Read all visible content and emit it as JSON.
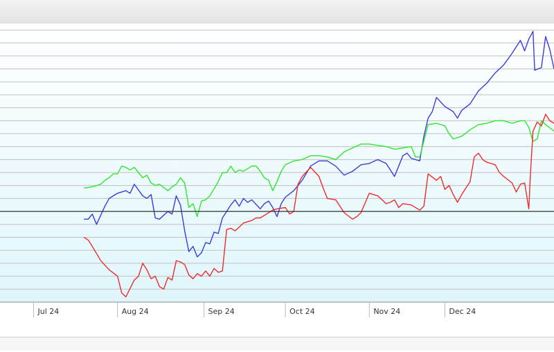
{
  "chart_data": {
    "type": "line",
    "title": "",
    "xlabel": "",
    "ylabel": "",
    "x_tick_labels": [
      "Jul 24",
      "Aug 24",
      "Sep 24",
      "Oct 24",
      "Nov 24",
      "Dec 24"
    ],
    "y_ticks": [
      -7,
      -6,
      -5,
      -4,
      -3,
      -2,
      -1,
      0,
      1,
      2,
      3,
      4,
      5,
      6,
      7,
      8,
      9,
      10,
      11,
      12,
      13,
      14
    ],
    "ylim": [
      -7,
      14.5
    ],
    "baseline": 0,
    "grid": "horizontal",
    "legend": "none",
    "colors": {
      "background_top": "#ffffff",
      "background_bottom": "#dff6fb",
      "gridline": "#c0c0c0",
      "baseline": "#333333",
      "blue": "#3b3bd9",
      "green": "#2ee82e",
      "red": "#ee2b2b"
    },
    "series": [
      {
        "color": "blue",
        "values": [
          [
            0,
            -0.6
          ],
          [
            0.5,
            -0.6
          ],
          [
            1,
            -0.2
          ],
          [
            1.5,
            -1.0
          ],
          [
            2.5,
            0.4
          ],
          [
            3,
            1.0
          ],
          [
            4,
            1.4
          ],
          [
            5,
            1.6
          ],
          [
            5.5,
            1.4
          ],
          [
            6,
            2.1
          ],
          [
            7,
            1.2
          ],
          [
            7.5,
            1.0
          ],
          [
            8,
            1.3
          ],
          [
            8.5,
            -0.5
          ],
          [
            9,
            -0.6
          ],
          [
            10,
            0.0
          ],
          [
            10.5,
            -0.2
          ],
          [
            11,
            1.2
          ],
          [
            11.5,
            0.5
          ],
          [
            12,
            -1.5
          ],
          [
            12.5,
            -3.1
          ],
          [
            13,
            -2.7
          ],
          [
            13.5,
            -3.5
          ],
          [
            14,
            -3.2
          ],
          [
            14.5,
            -2.4
          ],
          [
            15,
            -2.5
          ],
          [
            15.5,
            -1.6
          ],
          [
            16,
            -1.7
          ],
          [
            16.5,
            -0.5
          ],
          [
            17,
            0.0
          ],
          [
            17.5,
            0.5
          ],
          [
            18,
            0.9
          ],
          [
            18.5,
            0.4
          ],
          [
            19,
            1.0
          ],
          [
            19.5,
            0.7
          ],
          [
            20,
            0.9
          ],
          [
            21,
            0.2
          ],
          [
            21.5,
            0.6
          ],
          [
            22,
            0.8
          ],
          [
            22.5,
            0.3
          ],
          [
            23,
            -0.4
          ],
          [
            23.5,
            0.6
          ],
          [
            24,
            1.1
          ],
          [
            25,
            1.6
          ],
          [
            26,
            2.4
          ],
          [
            27,
            3.5
          ],
          [
            28,
            3.9
          ],
          [
            29,
            3.9
          ],
          [
            30,
            3.5
          ],
          [
            31,
            2.8
          ],
          [
            32,
            3.1
          ],
          [
            33,
            3.6
          ],
          [
            34,
            3.7
          ],
          [
            35,
            4.0
          ],
          [
            36,
            3.7
          ],
          [
            37,
            2.7
          ],
          [
            38,
            4.3
          ],
          [
            38.5,
            4.5
          ],
          [
            39,
            4.1
          ],
          [
            40,
            3.9
          ],
          [
            40.5,
            5.8
          ],
          [
            41,
            7.2
          ],
          [
            41.5,
            7.7
          ],
          [
            42,
            8.8
          ],
          [
            43,
            8.1
          ],
          [
            44,
            7.7
          ],
          [
            44.5,
            7.2
          ],
          [
            45,
            7.8
          ],
          [
            46,
            8.3
          ],
          [
            47,
            9.3
          ],
          [
            48,
            9.9
          ],
          [
            49,
            10.7
          ],
          [
            50,
            11.3
          ],
          [
            51,
            12.2
          ],
          [
            52,
            13.2
          ],
          [
            52.5,
            12.4
          ],
          [
            53,
            13.3
          ],
          [
            53.5,
            13.9
          ],
          [
            53.7,
            10.9
          ],
          [
            54.5,
            11.1
          ],
          [
            55,
            13.5
          ],
          [
            55.5,
            12.5
          ],
          [
            56,
            11.0
          ]
        ]
      },
      {
        "color": "green",
        "values": [
          [
            0,
            1.8
          ],
          [
            1,
            1.9
          ],
          [
            2,
            2.1
          ],
          [
            2.5,
            2.4
          ],
          [
            3,
            2.6
          ],
          [
            3.5,
            2.9
          ],
          [
            4,
            2.9
          ],
          [
            4.5,
            3.5
          ],
          [
            5,
            3.4
          ],
          [
            5.5,
            3.2
          ],
          [
            6,
            3.4
          ],
          [
            6.5,
            3.0
          ],
          [
            7,
            2.6
          ],
          [
            7.5,
            2.8
          ],
          [
            8,
            2.2
          ],
          [
            8.5,
            2.0
          ],
          [
            9,
            2.1
          ],
          [
            10,
            1.6
          ],
          [
            10.5,
            1.9
          ],
          [
            11,
            2.1
          ],
          [
            11.5,
            2.6
          ],
          [
            12,
            2.2
          ],
          [
            12.5,
            0.3
          ],
          [
            13,
            0.6
          ],
          [
            13.5,
            -0.4
          ],
          [
            14,
            0.8
          ],
          [
            14.5,
            0.9
          ],
          [
            15,
            1.2
          ],
          [
            16,
            2.3
          ],
          [
            16.5,
            3.0
          ],
          [
            17,
            3.0
          ],
          [
            17.5,
            3.5
          ],
          [
            18,
            3.0
          ],
          [
            18.5,
            3.2
          ],
          [
            19,
            3.1
          ],
          [
            19.5,
            3.3
          ],
          [
            20,
            3.5
          ],
          [
            20.5,
            3.5
          ],
          [
            21,
            3.1
          ],
          [
            21.5,
            2.6
          ],
          [
            22,
            2.4
          ],
          [
            22.5,
            1.6
          ],
          [
            23,
            2.3
          ],
          [
            23.5,
            3.1
          ],
          [
            24,
            3.6
          ],
          [
            25,
            3.9
          ],
          [
            26,
            4.0
          ],
          [
            27,
            4.3
          ],
          [
            28,
            4.3
          ],
          [
            29,
            4.2
          ],
          [
            30,
            4.0
          ],
          [
            31,
            4.6
          ],
          [
            32,
            4.9
          ],
          [
            33,
            5.2
          ],
          [
            34,
            5.2
          ],
          [
            35,
            5.1
          ],
          [
            36,
            5.0
          ],
          [
            37,
            4.8
          ],
          [
            38,
            4.9
          ],
          [
            39,
            5.0
          ],
          [
            39.5,
            4.2
          ],
          [
            40,
            4.2
          ],
          [
            41,
            6.7
          ],
          [
            42,
            6.8
          ],
          [
            43,
            6.6
          ],
          [
            43.5,
            6.0
          ],
          [
            44,
            5.6
          ],
          [
            45,
            5.8
          ],
          [
            46,
            6.3
          ],
          [
            47,
            6.7
          ],
          [
            48,
            6.8
          ],
          [
            49,
            7.0
          ],
          [
            50,
            7.0
          ],
          [
            51,
            6.8
          ],
          [
            52,
            7.0
          ],
          [
            52.5,
            7.0
          ],
          [
            53,
            6.5
          ],
          [
            53.5,
            5.4
          ],
          [
            54,
            5.6
          ],
          [
            54.5,
            7.0
          ],
          [
            55,
            6.7
          ],
          [
            56,
            6.2
          ]
        ]
      },
      {
        "color": "red",
        "values": [
          [
            0,
            -2.0
          ],
          [
            0.5,
            -2.2
          ],
          [
            1,
            -2.7
          ],
          [
            2,
            -3.8
          ],
          [
            3,
            -4.5
          ],
          [
            4,
            -5.0
          ],
          [
            4.5,
            -6.3
          ],
          [
            5,
            -6.6
          ],
          [
            6,
            -5.3
          ],
          [
            6.5,
            -5.0
          ],
          [
            7,
            -4.0
          ],
          [
            7.5,
            -4.5
          ],
          [
            8,
            -5.2
          ],
          [
            8.5,
            -5.0
          ],
          [
            9,
            -5.8
          ],
          [
            9.5,
            -6.0
          ],
          [
            10,
            -5.1
          ],
          [
            10.5,
            -5.3
          ],
          [
            11,
            -3.8
          ],
          [
            11.5,
            -3.9
          ],
          [
            12,
            -4.1
          ],
          [
            12.5,
            -4.9
          ],
          [
            13,
            -5.2
          ],
          [
            13.5,
            -4.8
          ],
          [
            14,
            -5.0
          ],
          [
            14.5,
            -4.6
          ],
          [
            15,
            -5.0
          ],
          [
            15.5,
            -4.4
          ],
          [
            16,
            -4.7
          ],
          [
            16.5,
            -4.6
          ],
          [
            17,
            -1.4
          ],
          [
            17.5,
            -1.3
          ],
          [
            18,
            -1.5
          ],
          [
            18.5,
            -1.2
          ],
          [
            19,
            -0.9
          ],
          [
            20,
            -0.7
          ],
          [
            20.5,
            -0.5
          ],
          [
            21,
            -0.5
          ],
          [
            22,
            -0.1
          ],
          [
            22.5,
            0.1
          ],
          [
            23,
            0.2
          ],
          [
            24,
            0.3
          ],
          [
            24.5,
            -0.2
          ],
          [
            25,
            0.0
          ],
          [
            25.5,
            2.1
          ],
          [
            26,
            2.7
          ],
          [
            27,
            3.4
          ],
          [
            28,
            2.7
          ],
          [
            28.5,
            1.8
          ],
          [
            29,
            1.0
          ],
          [
            30,
            0.9
          ],
          [
            30.5,
            0.4
          ],
          [
            31,
            -0.1
          ],
          [
            32,
            -0.6
          ],
          [
            32.5,
            -0.4
          ],
          [
            33,
            -0.1
          ],
          [
            34,
            1.4
          ],
          [
            35,
            1.2
          ],
          [
            36,
            0.6
          ],
          [
            36.5,
            0.7
          ],
          [
            37,
            0.9
          ],
          [
            37.5,
            0.3
          ],
          [
            38,
            0.6
          ],
          [
            39,
            0.5
          ],
          [
            40,
            0.1
          ],
          [
            40.5,
            0.4
          ],
          [
            41,
            2.9
          ],
          [
            42,
            2.4
          ],
          [
            42.5,
            2.7
          ],
          [
            43,
            1.7
          ],
          [
            43.5,
            2.0
          ],
          [
            44,
            1.3
          ],
          [
            44.5,
            0.7
          ],
          [
            45,
            1.3
          ],
          [
            46,
            2.3
          ],
          [
            46.5,
            4.2
          ],
          [
            47,
            4.5
          ],
          [
            47.5,
            4.0
          ],
          [
            48,
            3.8
          ],
          [
            49,
            3.6
          ],
          [
            49.5,
            3.0
          ],
          [
            50,
            2.7
          ],
          [
            51,
            2.2
          ],
          [
            51.5,
            1.5
          ],
          [
            52,
            2.1
          ],
          [
            52.5,
            2.2
          ],
          [
            53,
            0.2
          ],
          [
            53.2,
            3.0
          ],
          [
            53.5,
            6.2
          ],
          [
            54,
            6.9
          ],
          [
            54.5,
            6.6
          ],
          [
            55,
            7.5
          ],
          [
            55.5,
            7.0
          ],
          [
            56,
            6.8
          ]
        ]
      }
    ]
  }
}
